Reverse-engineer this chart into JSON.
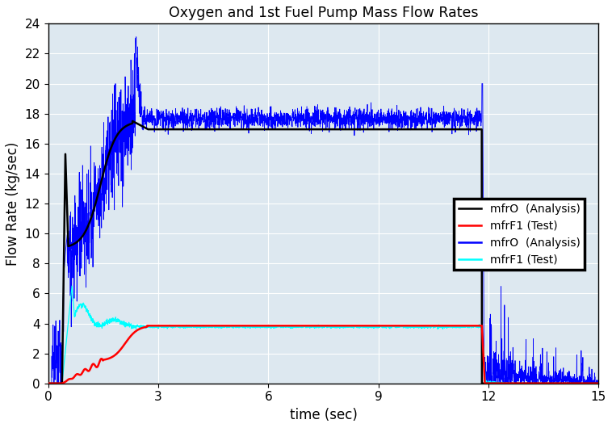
{
  "title": "Oxygen and 1st Fuel Pump Mass Flow Rates",
  "xlabel": "time (sec)",
  "ylabel": "Flow Rate (kg/sec)",
  "xlim": [
    0,
    15
  ],
  "ylim": [
    0,
    24
  ],
  "yticks": [
    0,
    2,
    4,
    6,
    8,
    10,
    12,
    14,
    16,
    18,
    20,
    22,
    24
  ],
  "xticks": [
    0,
    3,
    6,
    9,
    12,
    15
  ],
  "plot_bg": "#dde8f0",
  "fig_bg": "#ffffff",
  "grid_color": "#ffffff",
  "seed": 42,
  "legend_entries": [
    {
      "label": "mfrO  (Analysis)",
      "color": "black"
    },
    {
      "label": "mfrF1 (Test)",
      "color": "red"
    },
    {
      "label": "mfrO  (Analysis)",
      "color": "blue"
    },
    {
      "label": "mfrF1 (Test)",
      "color": "cyan"
    }
  ]
}
